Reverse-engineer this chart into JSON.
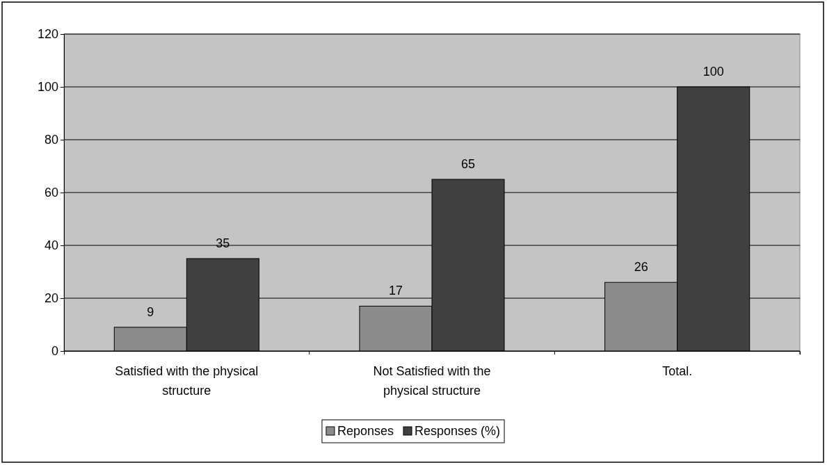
{
  "chart_data": {
    "type": "bar",
    "categories": [
      "Satisfied with the physical structure",
      "Not Satisfied with the physical structure",
      "Total."
    ],
    "series": [
      {
        "name": "Reponses",
        "color": "#8c8c8c",
        "values": [
          9,
          17,
          26
        ]
      },
      {
        "name": "Responses (%)",
        "color": "#404040",
        "values": [
          35,
          65,
          100
        ]
      }
    ],
    "ylim": [
      0,
      120
    ],
    "yticks": [
      0,
      20,
      40,
      60,
      80,
      100,
      120
    ],
    "grid": "y",
    "legend": "bottom",
    "data_labels": true
  }
}
